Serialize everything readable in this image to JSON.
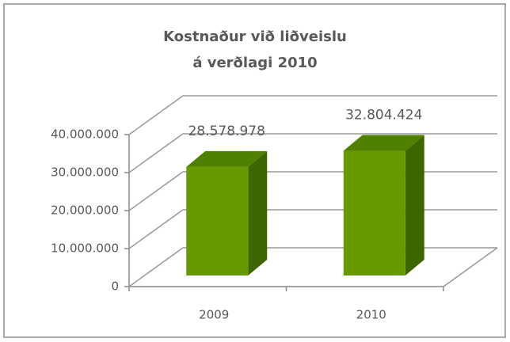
{
  "chart_data": {
    "type": "bar3d",
    "title": [
      "Kostnaður við liðveislu",
      "á verðlagi 2010"
    ],
    "categories": [
      "2009",
      "2010"
    ],
    "values": [
      28578978,
      32804424
    ],
    "value_labels": [
      "28.578.978",
      "32.804.424"
    ],
    "color": "#669900",
    "ylim": [
      0,
      40000000
    ],
    "yticks": [
      0,
      {
        "value": 10000000,
        "label": "10.000.000"
      },
      {
        "value": 20000000,
        "label": "20.000.000"
      },
      {
        "value": 30000000,
        "label": "30.000.000"
      },
      {
        "value": 40000000,
        "label": "40.000.000"
      }
    ],
    "grid": true
  }
}
